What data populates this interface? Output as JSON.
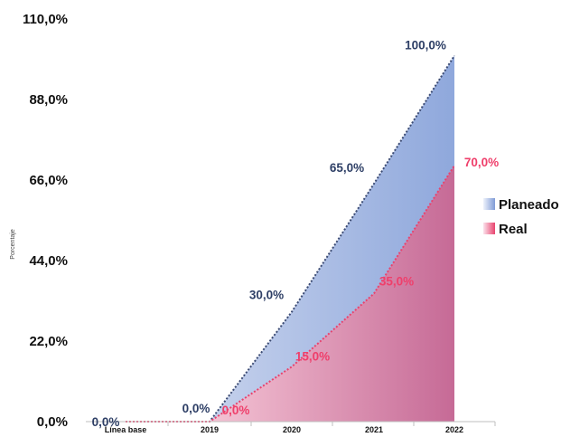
{
  "chart_data": {
    "type": "area",
    "title": "",
    "xlabel": "",
    "ylabel": "Porcentaje",
    "categories": [
      "Línea base",
      "2019",
      "2020",
      "2021",
      "2022"
    ],
    "y_ticks": [
      "0,0%",
      "22,0%",
      "44,0%",
      "66,0%",
      "88,0%",
      "110,0%"
    ],
    "ylim": [
      0,
      110
    ],
    "legend_position": "right",
    "series": [
      {
        "name": "Planeado",
        "values": [
          0,
          0,
          30,
          65,
          100
        ],
        "labels": [
          "0,0%",
          "0,0%",
          "30,0%",
          "65,0%",
          "100,0%"
        ],
        "label_color": "#2e3f66",
        "line_color": "#3c4b73",
        "fill_from": "#c5d1ec",
        "fill_to": "#8fa8dc"
      },
      {
        "name": "Real",
        "values": [
          0,
          0,
          15,
          35,
          70
        ],
        "labels": [
          "",
          "0,0%",
          "15,0%",
          "35,0%",
          "70,0%"
        ],
        "label_color": "#ef3f6b",
        "line_color": "#e8436e",
        "fill_from": "#f4c3d4",
        "fill_to": "#c66a96"
      }
    ]
  }
}
